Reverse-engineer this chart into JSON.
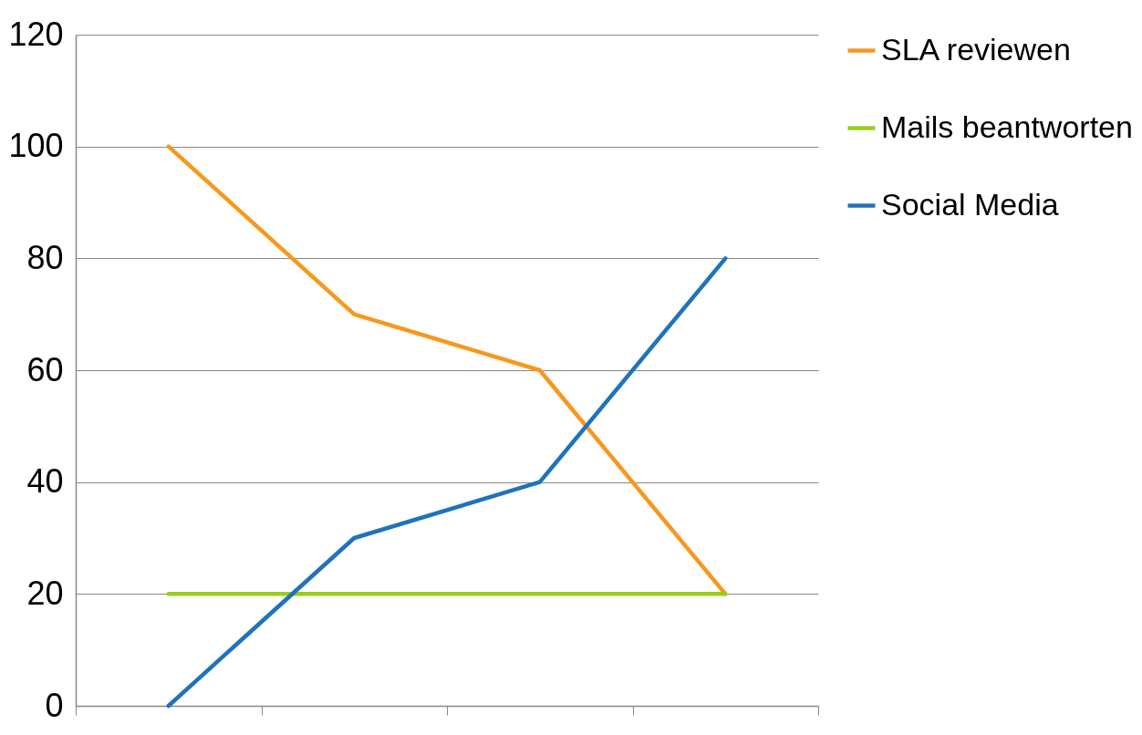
{
  "chart_data": {
    "type": "line",
    "categories": [
      null,
      null,
      null,
      null
    ],
    "series": [
      {
        "name": "SLA reviewen",
        "color": "#f7981d",
        "values": [
          100,
          70,
          60,
          20
        ]
      },
      {
        "name": "Mails beantworten",
        "color": "#9acd1a",
        "values": [
          20,
          20,
          20,
          20
        ]
      },
      {
        "name": "Social Media",
        "color": "#1f73bd",
        "values": [
          0,
          30,
          40,
          80
        ]
      }
    ],
    "ylim": [
      0,
      120
    ],
    "yticks": [
      0,
      20,
      40,
      60,
      80,
      100,
      120
    ],
    "grid": "y",
    "legend": "right",
    "marker": "none",
    "line_style": "solid"
  }
}
